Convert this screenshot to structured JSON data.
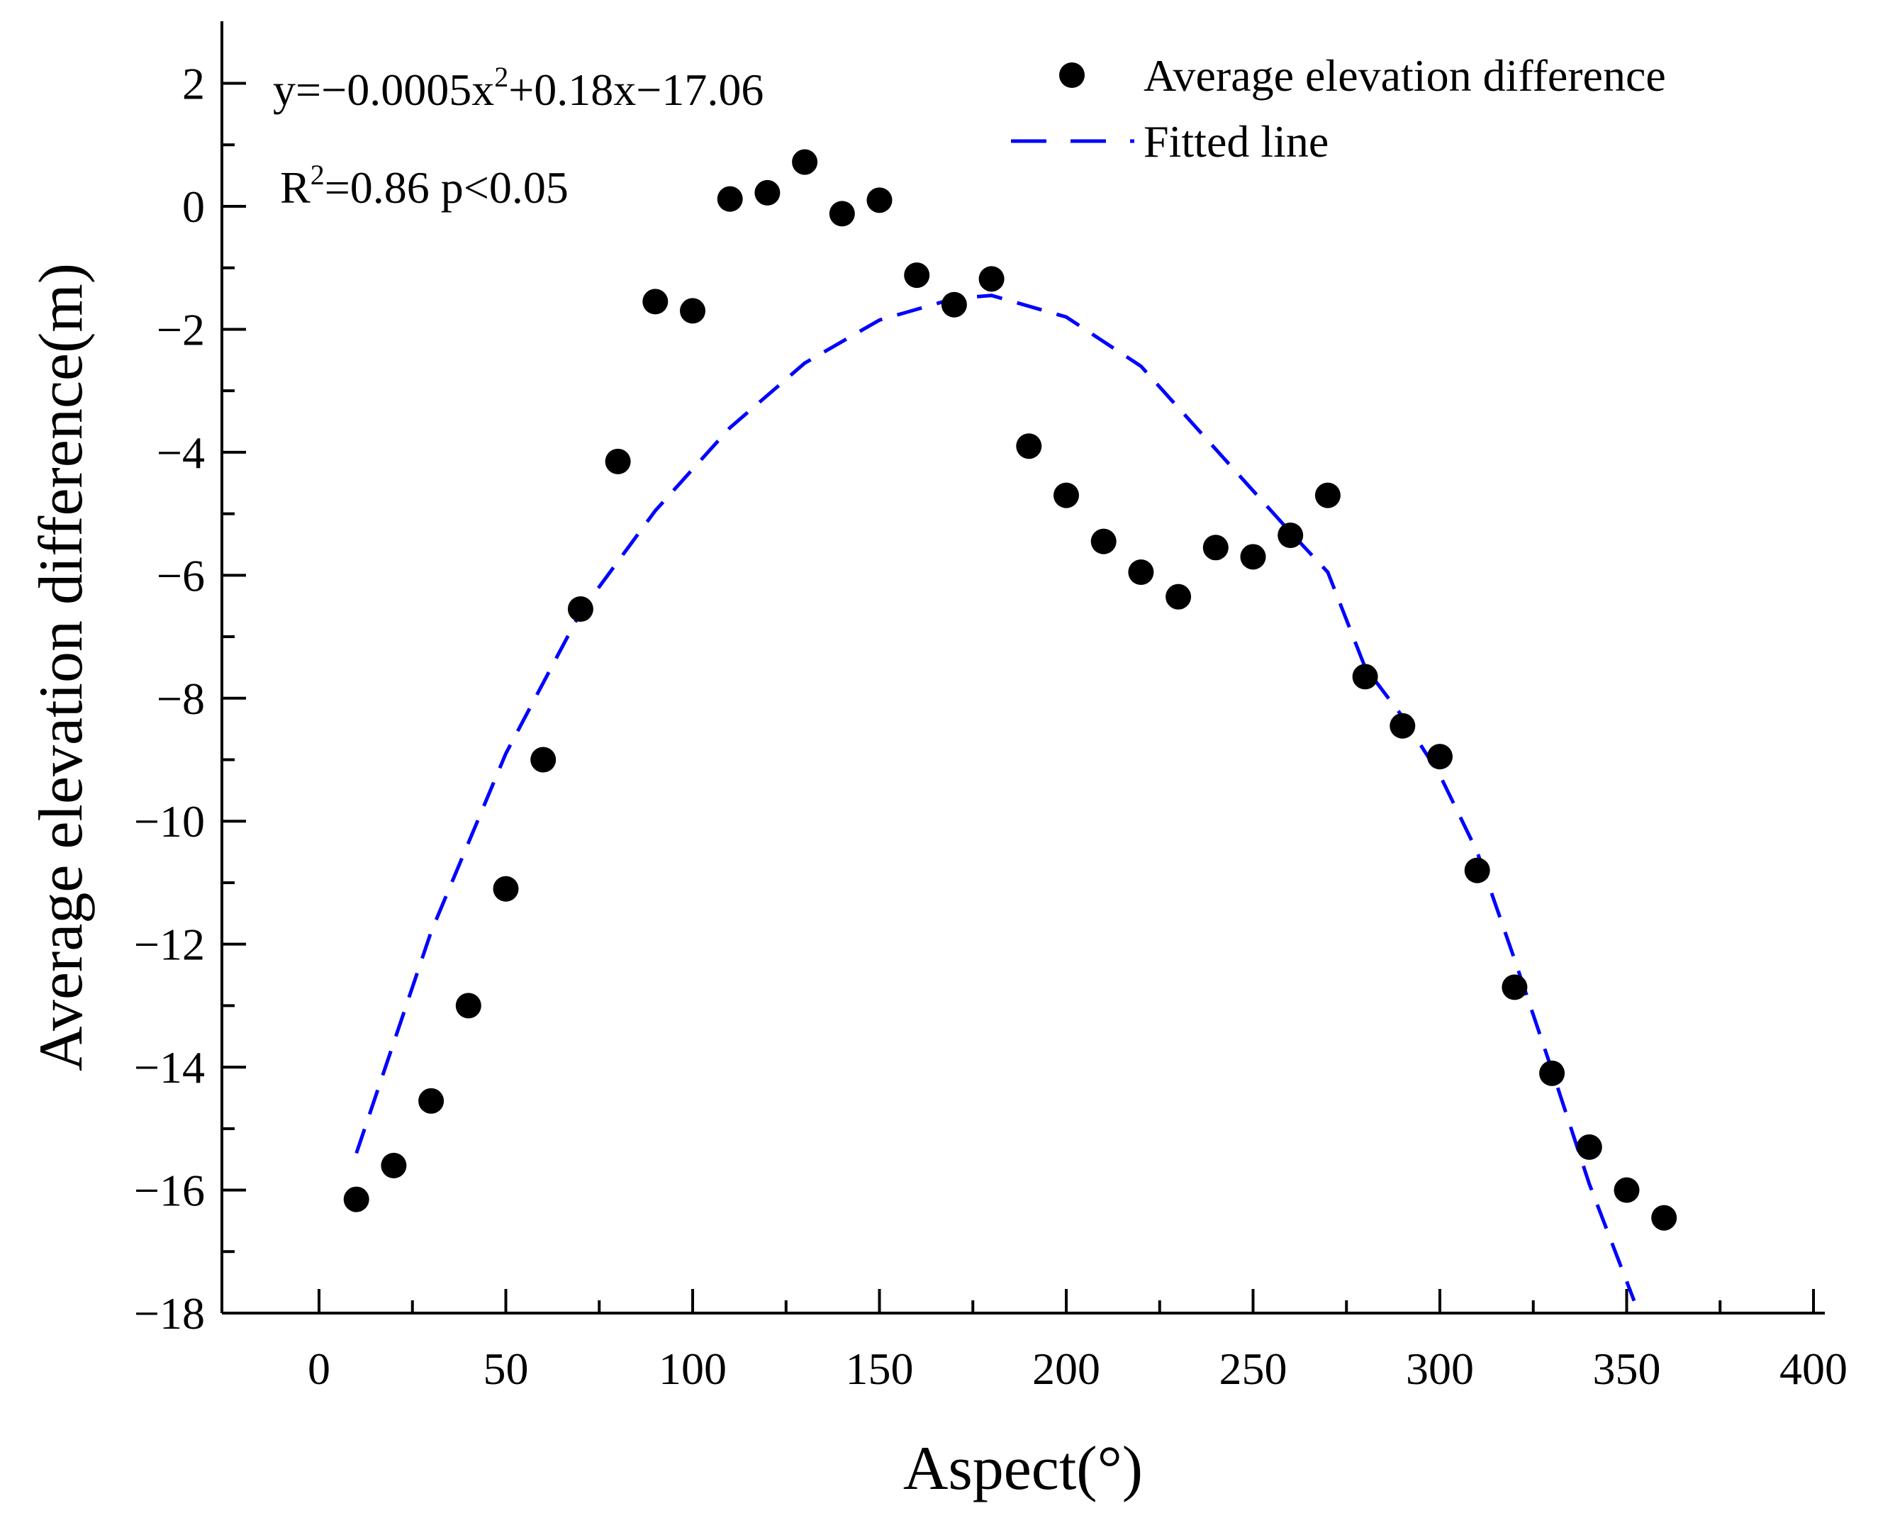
{
  "chart_data": {
    "type": "scatter",
    "xlabel": "Aspect(°)",
    "ylabel": "Average elevation difference(m)",
    "xlim": [
      -25,
      400
    ],
    "ylim": [
      -18,
      3
    ],
    "xticks": [
      0,
      50,
      100,
      150,
      200,
      250,
      300,
      350,
      400
    ],
    "yticks": [
      -18,
      -16,
      -14,
      -12,
      -10,
      -8,
      -6,
      -4,
      -2,
      0,
      2
    ],
    "series": [
      {
        "name": "Average  elevation difference",
        "kind": "scatter",
        "color": "#000000",
        "x": [
          10,
          20,
          30,
          40,
          50,
          60,
          70,
          80,
          90,
          100,
          110,
          120,
          130,
          140,
          150,
          160,
          170,
          180,
          190,
          200,
          210,
          220,
          230,
          240,
          250,
          260,
          270,
          280,
          290,
          300,
          310,
          320,
          330,
          340,
          350,
          360
        ],
        "y": [
          -16.15,
          -15.6,
          -14.55,
          -13.0,
          -11.1,
          -9.0,
          -6.55,
          -4.15,
          -1.55,
          -1.7,
          0.12,
          0.22,
          0.72,
          -0.12,
          0.1,
          -1.12,
          -1.6,
          -1.18,
          -3.9,
          -4.7,
          -5.45,
          -5.95,
          -6.35,
          -5.55,
          -5.7,
          -5.35,
          -4.7,
          -7.65,
          -8.45,
          -8.95,
          -10.8,
          -12.7,
          -14.1,
          -15.3,
          -16.0,
          -16.45
        ]
      },
      {
        "name": "Fitted line",
        "kind": "line",
        "style": "dashed",
        "color": "#0000ff",
        "x": [
          10,
          30,
          50,
          70,
          90,
          110,
          130,
          150,
          170,
          180,
          200,
          220,
          240,
          260,
          270,
          280,
          290,
          300,
          310,
          320,
          330,
          340,
          352
        ],
        "y": [
          -15.4,
          -11.8,
          -8.9,
          -6.6,
          -4.95,
          -3.6,
          -2.55,
          -1.85,
          -1.5,
          -1.45,
          -1.8,
          -2.6,
          -3.95,
          -5.3,
          -5.95,
          -7.5,
          -8.3,
          -9.25,
          -10.5,
          -12.25,
          -14.05,
          -15.9,
          -17.8
        ]
      }
    ],
    "legend": {
      "position": "top-right",
      "entries": [
        "Average  elevation difference",
        "Fitted line"
      ]
    },
    "annotations": {
      "equation_prefix": "y=−0.0005x",
      "equation_sup": "2",
      "equation_suffix": "+0.18x−17.06",
      "r2_prefix": "R",
      "r2_sup": "2",
      "r2_suffix": "=0.86 p<0.05"
    }
  }
}
